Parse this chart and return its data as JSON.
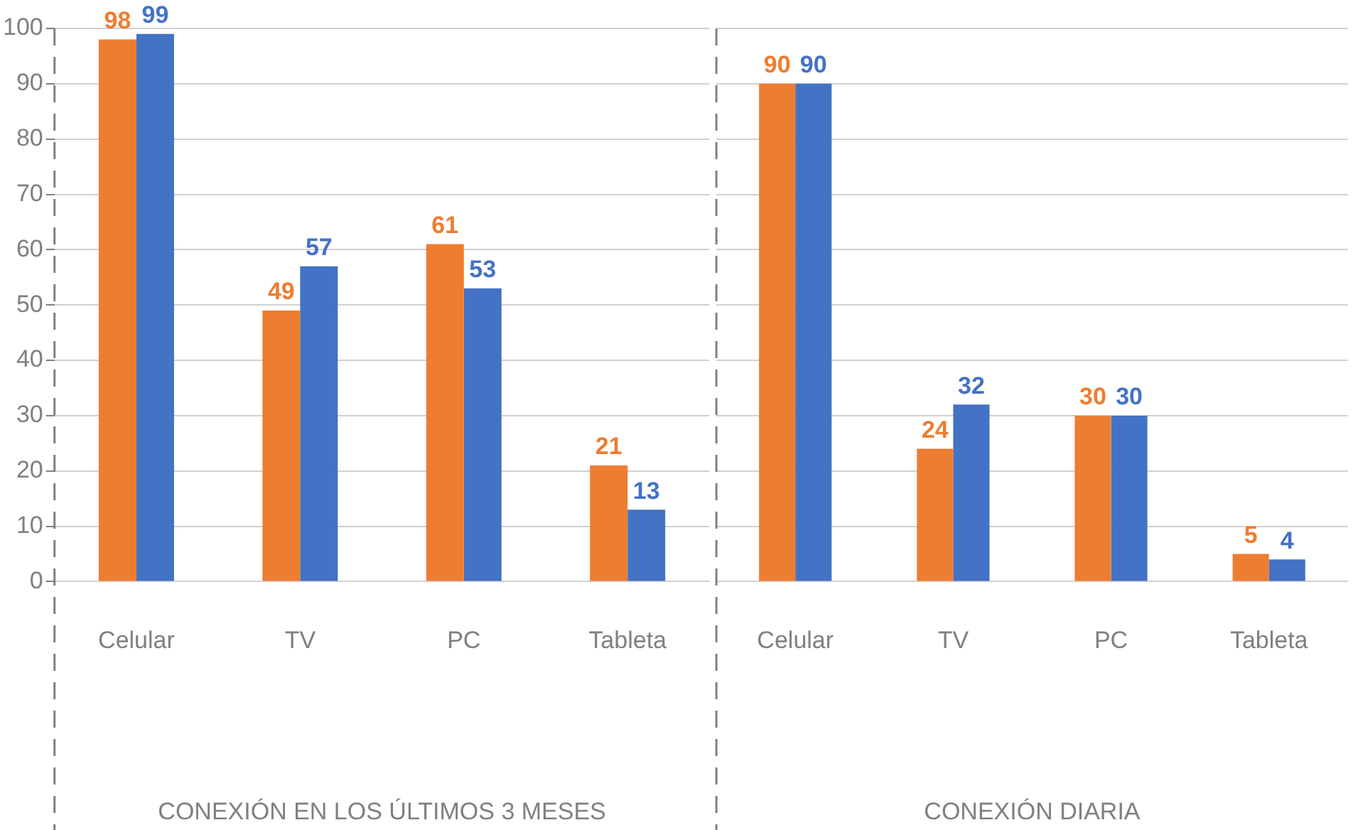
{
  "chart_data": [
    {
      "type": "bar",
      "categories": [
        "Celular",
        "TV",
        "PC",
        "Tableta"
      ],
      "xlabel": "CONEXIÓN EN LOS ÚLTIMOS 3 MESES",
      "series": [
        {
          "color": "#ed7d31",
          "values": [
            98,
            49,
            61,
            21
          ]
        },
        {
          "color": "#4472c4",
          "values": [
            99,
            57,
            53,
            13
          ]
        }
      ],
      "ylim": [
        0,
        100
      ],
      "yticks": [
        0,
        10,
        20,
        30,
        40,
        50,
        60,
        70,
        80,
        90,
        100
      ],
      "grid": "y",
      "data_labels": true
    },
    {
      "type": "bar",
      "categories": [
        "Celular",
        "TV",
        "PC",
        "Tableta"
      ],
      "xlabel": "CONEXIÓN DIARIA",
      "series": [
        {
          "color": "#ed7d31",
          "values": [
            90,
            24,
            30,
            5
          ]
        },
        {
          "color": "#4472c4",
          "values": [
            90,
            32,
            30,
            4
          ]
        }
      ],
      "ylim": [
        0,
        100
      ],
      "yticks": [
        0,
        10,
        20,
        30,
        40,
        50,
        60,
        70,
        80,
        90,
        100
      ],
      "grid": "y",
      "data_labels": true,
      "tick_labels": "x"
    }
  ]
}
